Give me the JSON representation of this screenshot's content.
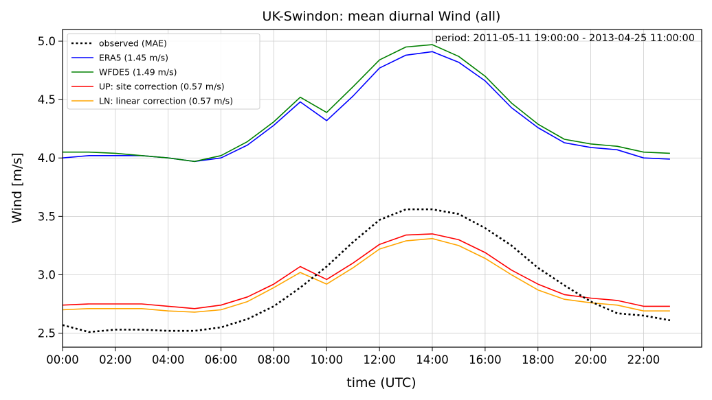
{
  "chart_data": {
    "type": "line",
    "title": "UK-Swindon: mean diurnal Wind (all)",
    "annotation": "period: 2011-05-11 19:00:00 - 2013-04-25 11:00:00",
    "xlabel": "time (UTC)",
    "ylabel": "Wind [m/s]",
    "xlim": [
      0,
      24.2
    ],
    "ylim": [
      2.38,
      5.1
    ],
    "grid": true,
    "legend_position": "top-left",
    "x_ticks": [
      0,
      2,
      4,
      6,
      8,
      10,
      12,
      14,
      16,
      18,
      20,
      22
    ],
    "x_tick_labels": [
      "00:00",
      "02:00",
      "04:00",
      "06:00",
      "08:00",
      "10:00",
      "12:00",
      "14:00",
      "16:00",
      "18:00",
      "20:00",
      "22:00"
    ],
    "y_ticks": [
      2.5,
      3.0,
      3.5,
      4.0,
      4.5,
      5.0
    ],
    "y_tick_labels": [
      "2.5",
      "3.0",
      "3.5",
      "4.0",
      "4.5",
      "5.0"
    ],
    "x": [
      0,
      1,
      2,
      3,
      4,
      5,
      6,
      7,
      8,
      9,
      10,
      11,
      12,
      13,
      14,
      15,
      16,
      17,
      18,
      19,
      20,
      21,
      22,
      23
    ],
    "series": [
      {
        "name": "observed (MAE)",
        "color": "#000000",
        "style": "dotted",
        "values": [
          2.57,
          2.51,
          2.53,
          2.53,
          2.52,
          2.52,
          2.55,
          2.62,
          2.73,
          2.89,
          3.07,
          3.28,
          3.47,
          3.56,
          3.56,
          3.52,
          3.4,
          3.25,
          3.06,
          2.91,
          2.77,
          2.67,
          2.65,
          2.61
        ]
      },
      {
        "name": "ERA5 (1.45 m/s)",
        "color": "#0000ff",
        "style": "solid",
        "values": [
          4.0,
          4.02,
          4.02,
          4.02,
          4.0,
          3.97,
          4.0,
          4.11,
          4.28,
          4.48,
          4.32,
          4.53,
          4.77,
          4.88,
          4.91,
          4.82,
          4.66,
          4.43,
          4.26,
          4.13,
          4.09,
          4.07,
          4.0,
          3.99
        ]
      },
      {
        "name": "WFDE5 (1.49 m/s)",
        "color": "#008000",
        "style": "solid",
        "values": [
          4.05,
          4.05,
          4.04,
          4.02,
          4.0,
          3.97,
          4.02,
          4.14,
          4.31,
          4.52,
          4.39,
          4.61,
          4.84,
          4.95,
          4.97,
          4.87,
          4.7,
          4.47,
          4.29,
          4.16,
          4.12,
          4.1,
          4.05,
          4.04
        ]
      },
      {
        "name": "UP: site correction (0.57 m/s)",
        "color": "#ff0000",
        "style": "solid",
        "values": [
          2.74,
          2.75,
          2.75,
          2.75,
          2.73,
          2.71,
          2.74,
          2.81,
          2.92,
          3.07,
          2.96,
          3.1,
          3.26,
          3.34,
          3.35,
          3.3,
          3.19,
          3.04,
          2.92,
          2.83,
          2.8,
          2.78,
          2.73,
          2.73
        ]
      },
      {
        "name": "LN: linear correction (0.57 m/s)",
        "color": "#ffa500",
        "style": "solid",
        "values": [
          2.7,
          2.71,
          2.71,
          2.71,
          2.69,
          2.68,
          2.7,
          2.77,
          2.89,
          3.02,
          2.92,
          3.06,
          3.22,
          3.29,
          3.31,
          3.25,
          3.14,
          3.0,
          2.87,
          2.79,
          2.76,
          2.74,
          2.69,
          2.69
        ]
      }
    ]
  }
}
